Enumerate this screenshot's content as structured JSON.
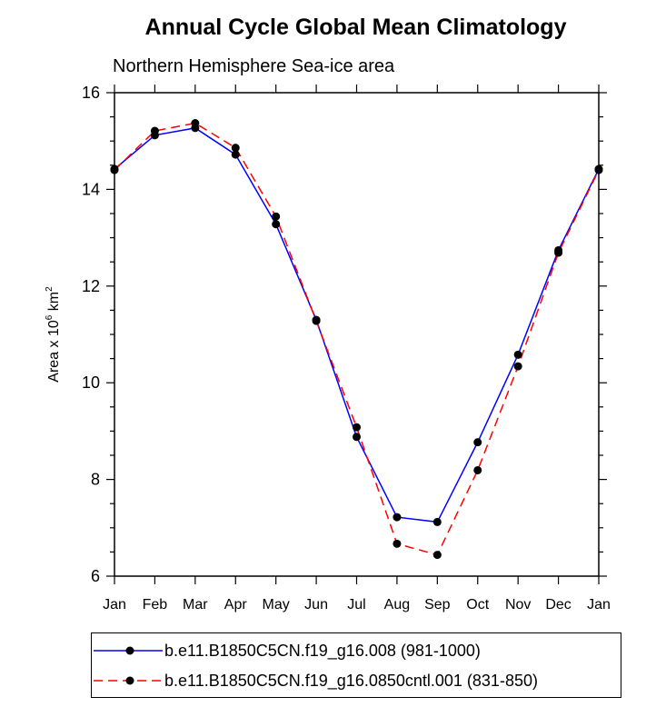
{
  "chart_data": {
    "type": "line",
    "title": "Annual Cycle Global Mean Climatology",
    "subtitle": "Northern Hemisphere Sea-ice area",
    "ylabel_prefix": "Area x 10",
    "ylabel_exp1": "6",
    "ylabel_unit": " km",
    "ylabel_exp2": "2",
    "xlabel": "",
    "categories": [
      "Jan",
      "Feb",
      "Mar",
      "Apr",
      "May",
      "Jun",
      "Jul",
      "Aug",
      "Sep",
      "Oct",
      "Nov",
      "Dec",
      "Jan"
    ],
    "ylim": [
      6,
      16
    ],
    "yticks": [
      6,
      8,
      10,
      12,
      14,
      16
    ],
    "grid": false,
    "legend_placement": "bottom",
    "series": [
      {
        "name": "b.e11.B1850C5CN.f19_g16.008 (981-1000)",
        "color": "#0000ff",
        "dash": "solid",
        "values": [
          14.42,
          15.12,
          15.27,
          14.72,
          13.28,
          11.3,
          8.88,
          7.22,
          7.12,
          8.77,
          10.58,
          12.74,
          14.42
        ]
      },
      {
        "name": "b.e11.B1850C5CN.f19_g16.0850cntl.001 (831-850)",
        "color": "#ff0000",
        "dash": "dashed",
        "values": [
          14.4,
          15.21,
          15.37,
          14.86,
          13.44,
          11.28,
          9.08,
          6.67,
          6.44,
          8.19,
          10.34,
          12.69,
          14.4
        ]
      }
    ]
  }
}
